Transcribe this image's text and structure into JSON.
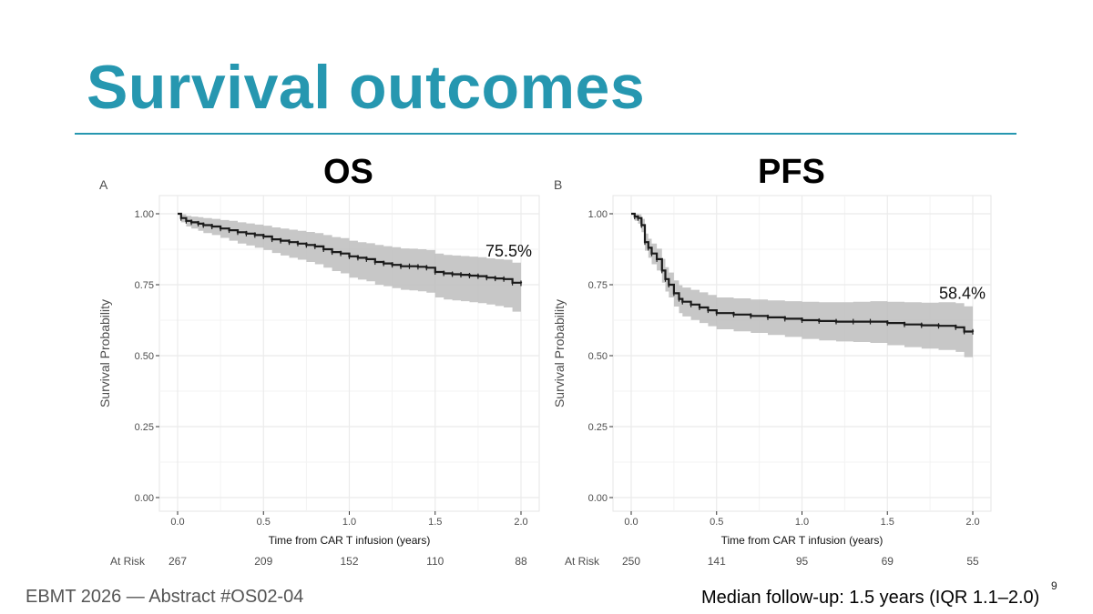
{
  "slide": {
    "title": "Survival outcomes",
    "footer_left": "EBMT 2026 — Abstract #OS02-04",
    "footer_right": "Median follow-up: 1.5 years (IQR 1.1–2.0)",
    "page_number": "9"
  },
  "colors": {
    "accent": "#2697b0",
    "curve": "#1a1a1a",
    "band": "#bdbdbd",
    "grid": "#ebebeb",
    "axis_text": "#4d4d4d"
  },
  "chart_data": [
    {
      "type": "line",
      "subtype": "kaplan-meier",
      "panel_letter": "A",
      "heading": "OS",
      "title": "OS",
      "xlabel": "Time from CAR T infusion (years)",
      "ylabel": "Survival Probability",
      "xlim": [
        0,
        2
      ],
      "ylim": [
        0,
        1
      ],
      "xticks": [
        0,
        0.5,
        1,
        1.5,
        2
      ],
      "xtick_labels": [
        "0.0",
        "0.5",
        "1.0",
        "1.5",
        "2.0"
      ],
      "yticks": [
        0,
        0.25,
        0.5,
        0.75,
        1
      ],
      "ytick_labels": [
        "0.00",
        "0.25",
        "0.50",
        "0.75",
        "1.00"
      ],
      "grid": true,
      "annotation": "75.5%",
      "risk_label": "At Risk",
      "at_risk": [
        "267",
        "209",
        "152",
        "110",
        "88"
      ],
      "series": [
        {
          "name": "OS",
          "x": [
            0,
            0.02,
            0.05,
            0.08,
            0.12,
            0.15,
            0.2,
            0.25,
            0.3,
            0.35,
            0.4,
            0.45,
            0.5,
            0.55,
            0.6,
            0.65,
            0.7,
            0.75,
            0.8,
            0.85,
            0.9,
            0.95,
            1.0,
            1.05,
            1.1,
            1.15,
            1.2,
            1.25,
            1.3,
            1.35,
            1.4,
            1.45,
            1.5,
            1.55,
            1.6,
            1.65,
            1.7,
            1.75,
            1.8,
            1.85,
            1.9,
            1.95,
            2.0
          ],
          "y": [
            1.0,
            0.985,
            0.975,
            0.97,
            0.965,
            0.96,
            0.955,
            0.948,
            0.942,
            0.935,
            0.93,
            0.925,
            0.92,
            0.91,
            0.905,
            0.9,
            0.895,
            0.89,
            0.885,
            0.875,
            0.865,
            0.86,
            0.85,
            0.845,
            0.84,
            0.83,
            0.825,
            0.82,
            0.815,
            0.815,
            0.813,
            0.81,
            0.795,
            0.79,
            0.787,
            0.785,
            0.782,
            0.78,
            0.775,
            0.772,
            0.77,
            0.757,
            0.755
          ],
          "lower": [
            1.0,
            0.97,
            0.955,
            0.948,
            0.94,
            0.932,
            0.925,
            0.915,
            0.905,
            0.895,
            0.888,
            0.88,
            0.872,
            0.862,
            0.853,
            0.845,
            0.838,
            0.83,
            0.822,
            0.81,
            0.798,
            0.79,
            0.775,
            0.768,
            0.762,
            0.75,
            0.745,
            0.738,
            0.732,
            0.73,
            0.727,
            0.722,
            0.705,
            0.698,
            0.695,
            0.692,
            0.688,
            0.685,
            0.68,
            0.675,
            0.67,
            0.655,
            0.65
          ],
          "upper": [
            1.0,
            0.998,
            0.993,
            0.99,
            0.988,
            0.985,
            0.982,
            0.978,
            0.975,
            0.97,
            0.966,
            0.962,
            0.958,
            0.952,
            0.948,
            0.944,
            0.94,
            0.936,
            0.932,
            0.925,
            0.918,
            0.914,
            0.905,
            0.9,
            0.896,
            0.89,
            0.886,
            0.882,
            0.878,
            0.877,
            0.875,
            0.872,
            0.86,
            0.855,
            0.853,
            0.851,
            0.849,
            0.847,
            0.843,
            0.84,
            0.838,
            0.828,
            0.826
          ]
        }
      ]
    },
    {
      "type": "line",
      "subtype": "kaplan-meier",
      "panel_letter": "B",
      "heading": "PFS",
      "title": "PFS",
      "xlabel": "Time from CAR T infusion (years)",
      "ylabel": "Survival Probability",
      "xlim": [
        0,
        2
      ],
      "ylim": [
        0,
        1
      ],
      "xticks": [
        0,
        0.5,
        1,
        1.5,
        2
      ],
      "xtick_labels": [
        "0.0",
        "0.5",
        "1.0",
        "1.5",
        "2.0"
      ],
      "yticks": [
        0,
        0.25,
        0.5,
        0.75,
        1
      ],
      "ytick_labels": [
        "0.00",
        "0.25",
        "0.50",
        "0.75",
        "1.00"
      ],
      "grid": true,
      "annotation": "58.4%",
      "risk_label": "At Risk",
      "at_risk": [
        "250",
        "141",
        "95",
        "69",
        "55"
      ],
      "series": [
        {
          "name": "PFS",
          "x": [
            0,
            0.02,
            0.04,
            0.06,
            0.08,
            0.1,
            0.12,
            0.15,
            0.18,
            0.2,
            0.22,
            0.25,
            0.28,
            0.3,
            0.35,
            0.4,
            0.45,
            0.5,
            0.6,
            0.7,
            0.8,
            0.9,
            1.0,
            1.1,
            1.2,
            1.3,
            1.4,
            1.5,
            1.6,
            1.7,
            1.8,
            1.9,
            1.95,
            2.0
          ],
          "y": [
            1.0,
            0.99,
            0.985,
            0.96,
            0.9,
            0.88,
            0.86,
            0.84,
            0.8,
            0.77,
            0.75,
            0.72,
            0.7,
            0.69,
            0.68,
            0.67,
            0.66,
            0.65,
            0.645,
            0.64,
            0.635,
            0.63,
            0.625,
            0.622,
            0.62,
            0.62,
            0.62,
            0.615,
            0.61,
            0.607,
            0.605,
            0.6,
            0.585,
            0.584
          ],
          "lower": [
            1.0,
            0.975,
            0.965,
            0.935,
            0.87,
            0.845,
            0.822,
            0.8,
            0.757,
            0.726,
            0.705,
            0.673,
            0.65,
            0.638,
            0.626,
            0.615,
            0.604,
            0.593,
            0.586,
            0.58,
            0.573,
            0.566,
            0.559,
            0.554,
            0.55,
            0.548,
            0.545,
            0.537,
            0.53,
            0.525,
            0.52,
            0.513,
            0.495,
            0.492
          ],
          "upper": [
            1.0,
            1.0,
            0.998,
            0.982,
            0.93,
            0.912,
            0.895,
            0.877,
            0.841,
            0.812,
            0.793,
            0.765,
            0.748,
            0.74,
            0.732,
            0.723,
            0.714,
            0.705,
            0.702,
            0.698,
            0.695,
            0.692,
            0.69,
            0.688,
            0.688,
            0.69,
            0.692,
            0.69,
            0.688,
            0.687,
            0.688,
            0.685,
            0.674,
            0.674
          ]
        }
      ]
    }
  ]
}
